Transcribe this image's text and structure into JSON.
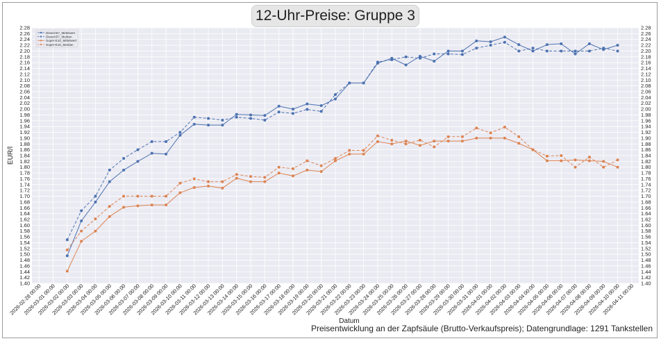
{
  "chart_data": {
    "type": "line",
    "title": "12-Uhr-Preise: Gruppe 3",
    "xlabel": "Datum",
    "ylabel": "EUR/l",
    "footer": "Preisentwicklung an der Zapfsäule (Brutto-Verkaufspreis); Datengrundlage: 1291 Tankstellen",
    "ylim": [
      1.4,
      2.28
    ],
    "ytick_step": 0.02,
    "y_decimals": 2,
    "grid": true,
    "legend_position": "top-left",
    "x_tick_labels": [
      "2026-02-28 00:00",
      "2026-03-01 00:00",
      "2026-03-02 00:00",
      "2026-03-03 00:00",
      "2026-03-04 00:00",
      "2026-03-05 00:00",
      "2026-03-06 00:00",
      "2026-03-07 00:00",
      "2026-03-08 00:00",
      "2026-03-09 00:00",
      "2026-03-10 00:00",
      "2026-03-11 00:00",
      "2026-03-12 00:00",
      "2026-03-13 00:00",
      "2026-03-14 00:00",
      "2026-03-15 00:00",
      "2026-03-16 00:00",
      "2026-03-17 00:00",
      "2026-03-18 00:00",
      "2026-03-19 00:00",
      "2026-03-20 00:00",
      "2026-03-21 00:00",
      "2026-03-22 00:00",
      "2026-03-23 00:00",
      "2026-03-24 00:00",
      "2026-03-25 00:00",
      "2026-03-26 00:00",
      "2026-03-27 00:00",
      "2026-03-28 00:00",
      "2026-03-29 00:00",
      "2026-03-30 00:00",
      "2026-03-31 00:00",
      "2026-04-01 00:00",
      "2026-04-02 00:00",
      "2026-04-03 00:00",
      "2026-04-04 00:00",
      "2026-04-05 00:00",
      "2026-04-06 00:00",
      "2026-04-07 00:00",
      "2026-04-08 00:00",
      "2026-04-09 00:00",
      "2026-04-10 00:00",
      "2026-04-11 00:00"
    ],
    "x": [
      "2026-03-02",
      "2026-03-03",
      "2026-03-04",
      "2026-03-05",
      "2026-03-06",
      "2026-03-07",
      "2026-03-08",
      "2026-03-09",
      "2026-03-10",
      "2026-03-11",
      "2026-03-12",
      "2026-03-13",
      "2026-03-14",
      "2026-03-15",
      "2026-03-16",
      "2026-03-17",
      "2026-03-18",
      "2026-03-19",
      "2026-03-20",
      "2026-03-21",
      "2026-03-22",
      "2026-03-23",
      "2026-03-24",
      "2026-03-25",
      "2026-03-26",
      "2026-03-27",
      "2026-03-28",
      "2026-03-29",
      "2026-03-30",
      "2026-03-31",
      "2026-04-01",
      "2026-04-02",
      "2026-04-03",
      "2026-04-04",
      "2026-04-05",
      "2026-04-06",
      "2026-04-07",
      "2026-04-08",
      "2026-04-09",
      "2026-04-10"
    ],
    "series": [
      {
        "name": "Diesel-B7_Mittelwert",
        "color": "#4c72b0",
        "dash": "solid",
        "values": [
          1.495,
          1.615,
          1.68,
          1.75,
          1.79,
          1.82,
          1.848,
          1.845,
          1.91,
          1.948,
          1.945,
          1.945,
          1.982,
          1.98,
          1.978,
          2.01,
          2.0,
          2.018,
          2.012,
          2.035,
          2.09,
          2.09,
          2.158,
          2.175,
          2.152,
          2.182,
          2.165,
          2.2,
          2.2,
          2.235,
          2.232,
          2.248,
          2.222,
          2.2,
          2.222,
          2.225,
          2.19,
          2.225,
          2.205,
          2.22
        ]
      },
      {
        "name": "Diesel-B7_Median",
        "color": "#4c72b0",
        "dash": "dashed",
        "values": [
          1.55,
          1.65,
          1.7,
          1.79,
          1.83,
          1.86,
          1.888,
          1.888,
          1.92,
          1.972,
          1.968,
          1.962,
          1.972,
          1.968,
          1.962,
          1.99,
          1.985,
          1.999,
          1.992,
          2.05,
          2.09,
          2.09,
          2.162,
          2.17,
          2.18,
          2.175,
          2.19,
          2.19,
          2.188,
          2.21,
          2.22,
          2.23,
          2.2,
          2.21,
          2.2,
          2.2,
          2.2,
          2.2,
          2.21,
          2.2
        ]
      },
      {
        "name": "Super-E10_Mittelwert",
        "color": "#dd8452",
        "dash": "solid",
        "values": [
          1.442,
          1.545,
          1.58,
          1.63,
          1.662,
          1.667,
          1.67,
          1.67,
          1.712,
          1.73,
          1.735,
          1.728,
          1.762,
          1.75,
          1.75,
          1.78,
          1.77,
          1.79,
          1.785,
          1.822,
          1.845,
          1.845,
          1.888,
          1.88,
          1.89,
          1.875,
          1.89,
          1.89,
          1.89,
          1.9,
          1.9,
          1.9,
          1.882,
          1.86,
          1.822,
          1.822,
          1.825,
          1.822,
          1.82,
          1.8
        ]
      },
      {
        "name": "Super-E10_Median",
        "color": "#dd8452",
        "dash": "dashed",
        "values": [
          1.515,
          1.58,
          1.622,
          1.665,
          1.7,
          1.7,
          1.7,
          1.7,
          1.745,
          1.76,
          1.75,
          1.75,
          1.775,
          1.768,
          1.765,
          1.8,
          1.795,
          1.822,
          1.805,
          1.83,
          1.858,
          1.858,
          1.908,
          1.893,
          1.88,
          1.893,
          1.87,
          1.905,
          1.905,
          1.935,
          1.918,
          1.938,
          1.905,
          1.86,
          1.838,
          1.84,
          1.8,
          1.835,
          1.8,
          1.825
        ]
      }
    ]
  }
}
